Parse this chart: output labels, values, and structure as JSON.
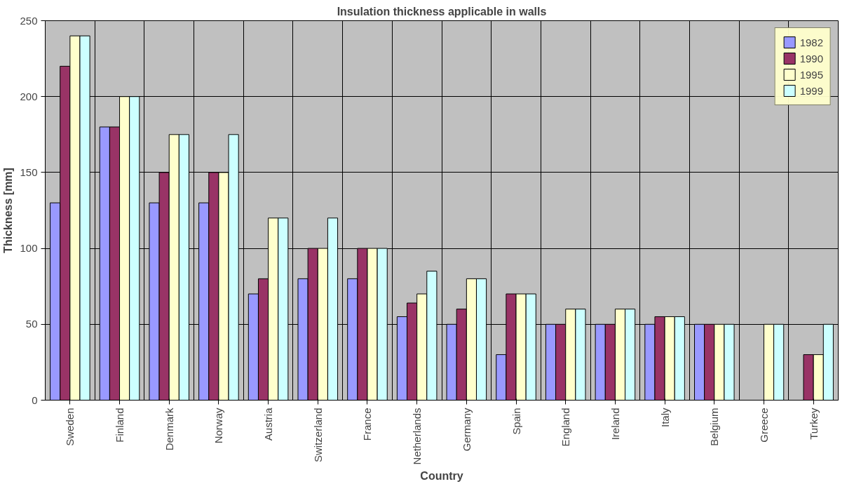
{
  "chart_data": {
    "type": "bar",
    "title": "Insulation thickness applicable in walls",
    "xlabel": "Country",
    "ylabel": "Thickness [mm]",
    "categories": [
      "Sweden",
      "Finland",
      "Denmark",
      "Norway",
      "Austria",
      "Switzerland",
      "France",
      "Netherlands",
      "Germany",
      "Spain",
      "England",
      "Ireland",
      "Italy",
      "Belgium",
      "Greece",
      "Turkey"
    ],
    "series": [
      {
        "name": "1982",
        "color": "#9999ff",
        "values": [
          130,
          180,
          130,
          130,
          70,
          80,
          80,
          55,
          50,
          30,
          50,
          50,
          50,
          50,
          null,
          null
        ]
      },
      {
        "name": "1990",
        "color": "#993366",
        "values": [
          220,
          180,
          150,
          150,
          80,
          100,
          100,
          64,
          60,
          70,
          50,
          50,
          55,
          50,
          null,
          30
        ]
      },
      {
        "name": "1995",
        "color": "#ffffcc",
        "values": [
          240,
          200,
          175,
          150,
          120,
          100,
          100,
          70,
          80,
          70,
          60,
          60,
          55,
          50,
          50,
          30
        ]
      },
      {
        "name": "1999",
        "color": "#ccffff",
        "values": [
          240,
          200,
          175,
          175,
          120,
          120,
          100,
          85,
          80,
          70,
          60,
          60,
          55,
          50,
          50,
          50
        ]
      }
    ],
    "ylim": [
      0,
      250
    ],
    "yticks": [
      0,
      50,
      100,
      150,
      200,
      250
    ],
    "grid": true,
    "legend": "top right"
  }
}
